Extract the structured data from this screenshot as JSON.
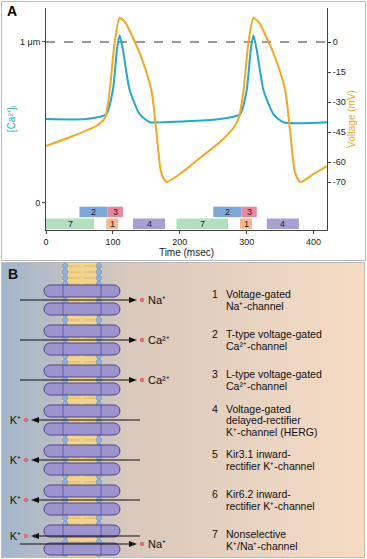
{
  "chart_data": {
    "panel_label": "A",
    "type": "line",
    "x_label": "Time (msec)",
    "y_label": "[Ca²⁺]ᵢ",
    "y2_label": "Voltage (mV)",
    "xlim": [
      0,
      420
    ],
    "xticks": [
      0,
      100,
      200,
      300,
      400
    ],
    "ylim": [
      -0.17,
      1.21
    ],
    "yticks": [
      0,
      {
        "value": 1,
        "label": "1 μm"
      }
    ],
    "y2lim": [
      -94,
      17
    ],
    "y2ticks": [
      0,
      -15,
      -30,
      -45,
      -60,
      -70
    ],
    "grid": false,
    "series": [
      {
        "color": "#25a8cc",
        "x": [
          0,
          60,
          90,
          100,
          106,
          110,
          115,
          125,
          140,
          155,
          175,
          260,
          290,
          300,
          306,
          310,
          315,
          325,
          340,
          355,
          420
        ],
        "values": [
          0.52,
          0.52,
          0.55,
          0.7,
          0.95,
          1.04,
          0.95,
          0.7,
          0.55,
          0.5,
          0.5,
          0.52,
          0.55,
          0.7,
          0.95,
          1.04,
          0.95,
          0.7,
          0.55,
          0.5,
          0.5
        ]
      },
      {
        "color": "#f6a623",
        "axis": "y2",
        "x": [
          0,
          40,
          75,
          88,
          95,
          102,
          110,
          118,
          130,
          145,
          158,
          165,
          172,
          180,
          200,
          230,
          260,
          280,
          288,
          295,
          302,
          310,
          318,
          330,
          345,
          358,
          365,
          372,
          380,
          400,
          420
        ],
        "values": [
          -52,
          -47,
          -42,
          -38,
          -25,
          -2,
          12,
          10,
          2,
          -10,
          -25,
          -45,
          -65,
          -70,
          -66,
          -58,
          -50,
          -43,
          -38,
          -25,
          -2,
          12,
          10,
          2,
          -10,
          -25,
          -45,
          -65,
          -70,
          -66,
          -62
        ]
      }
    ],
    "reference_lines": [
      {
        "axis": "y2",
        "value": 0,
        "line_style": "dashed"
      }
    ],
    "channel_bars": {
      "upper": [
        {
          "label": "2",
          "start": 50,
          "end": 92,
          "color": "#7fa6d9"
        },
        {
          "label": "3",
          "start": 92,
          "end": 115,
          "color": "#e8899b"
        },
        {
          "label": "2",
          "start": 250,
          "end": 292,
          "color": "#7fa6d9"
        },
        {
          "label": "3",
          "start": 292,
          "end": 315,
          "color": "#e8899b"
        }
      ],
      "lower": [
        {
          "label": "7",
          "start": 0,
          "end": 72,
          "color": "#b3dfbf"
        },
        {
          "label": "1",
          "start": 90,
          "end": 108,
          "color": "#f6b892"
        },
        {
          "label": "4",
          "start": 130,
          "end": 178,
          "color": "#a99fd3"
        },
        {
          "label": "7",
          "start": 195,
          "end": 272,
          "color": "#b3dfbf"
        },
        {
          "label": "1",
          "start": 290,
          "end": 308,
          "color": "#f6b892"
        },
        {
          "label": "4",
          "start": 330,
          "end": 378,
          "color": "#a99fd3"
        }
      ]
    }
  },
  "diagram": {
    "panel_label": "B",
    "channels": [
      {
        "number": 1,
        "lines": [
          "Voltage-gated",
          "Na⁺-channel"
        ],
        "ions": [
          {
            "text": "Na⁺",
            "direction": "in"
          }
        ]
      },
      {
        "number": 2,
        "lines": [
          "T-type voltage-gated",
          "Ca²⁺-channel"
        ],
        "ions": [
          {
            "text": "Ca²⁺",
            "direction": "in"
          }
        ]
      },
      {
        "number": 3,
        "lines": [
          "L-type voltage-gated",
          "Ca²⁺-channel"
        ],
        "ions": [
          {
            "text": "Ca²⁺",
            "direction": "in"
          }
        ]
      },
      {
        "number": 4,
        "lines": [
          "Voltage-gated",
          "delayed-rectifier",
          "K⁺-channel (HERG)"
        ],
        "ions": [
          {
            "text": "K⁺",
            "direction": "out"
          }
        ]
      },
      {
        "number": 5,
        "lines": [
          "Kir3.1 inward-",
          "rectifier K⁺-channel"
        ],
        "ions": [
          {
            "text": "K⁺",
            "direction": "out"
          }
        ]
      },
      {
        "number": 6,
        "lines": [
          "Kir6.2 inward-",
          "rectifier K⁺-channel"
        ],
        "ions": [
          {
            "text": "K⁺",
            "direction": "out"
          }
        ]
      },
      {
        "number": 7,
        "lines": [
          "Nonselective",
          "K⁺/Na⁺-channel"
        ],
        "ions": [
          {
            "text": "K⁺",
            "direction": "out"
          },
          {
            "text": "Na⁺",
            "direction": "in"
          }
        ]
      }
    ]
  }
}
